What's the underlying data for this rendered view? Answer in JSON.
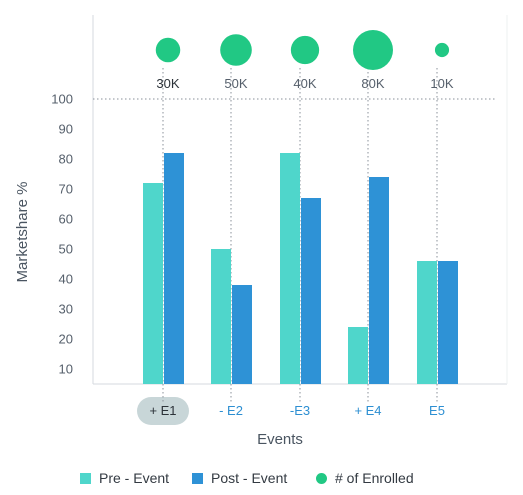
{
  "chart_data": {
    "type": "bar",
    "categories": [
      "+ E1",
      "- E2",
      "-E3",
      "+ E4",
      "E5"
    ],
    "selected_category": "+ E1",
    "series": [
      {
        "name": "Pre - Event",
        "color": "#4fd6cb",
        "values": [
          72,
          50,
          82,
          24,
          46
        ]
      },
      {
        "name": "Post - Event",
        "color": "#2e92d6",
        "values": [
          82,
          38,
          67,
          74,
          46
        ]
      }
    ],
    "enrolled": {
      "name": "# of Enrolled",
      "color": "#21c884",
      "labels": [
        "30K",
        "50K",
        "40K",
        "80K",
        "10K"
      ],
      "values": [
        30000,
        50000,
        40000,
        80000,
        10000
      ]
    },
    "xlabel": "Events",
    "ylabel": "Marketshare %",
    "ylim": [
      5,
      100
    ],
    "yticks": [
      10,
      20,
      30,
      40,
      50,
      60,
      70,
      80,
      90,
      100
    ],
    "legend_position": "bottom",
    "grid": false
  }
}
